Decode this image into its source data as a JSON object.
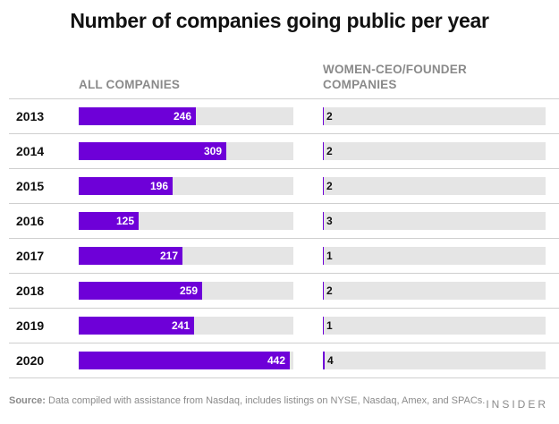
{
  "chart_data": {
    "type": "bar",
    "title": "Number of companies going public per year",
    "categories": [
      "2013",
      "2014",
      "2015",
      "2016",
      "2017",
      "2018",
      "2019",
      "2020"
    ],
    "series": [
      {
        "name": "ALL COMPANIES",
        "values": [
          246,
          309,
          196,
          125,
          217,
          259,
          241,
          442
        ]
      },
      {
        "name": "WOMEN-CEO/FOUNDER COMPANIES",
        "values": [
          2,
          2,
          2,
          3,
          1,
          2,
          1,
          4
        ]
      }
    ],
    "xlim": [
      0,
      450
    ],
    "orientation": "horizontal",
    "colors": {
      "bar": "#6e00d8",
      "track": "#e5e5e5"
    }
  },
  "header": {
    "all_label": "ALL COMPANIES",
    "women_label_line1": "WOMEN-CEO/FOUNDER",
    "women_label_line2": "COMPANIES"
  },
  "footer": {
    "source_label": "Source:",
    "source_text": " Data compiled with assistance from Nasdaq, includes listings on NYSE, Nasdaq, Amex, and SPACs.",
    "brand": "INSIDER"
  }
}
